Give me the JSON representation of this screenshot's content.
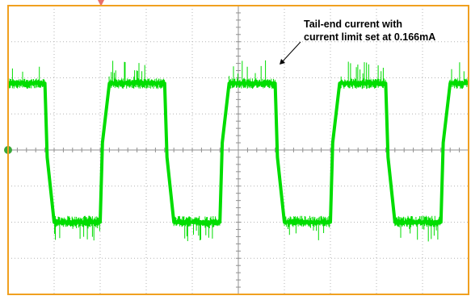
{
  "annotation": {
    "line1": "Tail-end current with",
    "line2": "current limit set at 0.166mA"
  },
  "colors": {
    "background": "#ffffff",
    "frame": "#f0a020",
    "grid": "#b4b4b4",
    "axis": "#909090",
    "trace": "#00dd00",
    "ground_marker": "#3aa83a",
    "trigger_marker": "#e8706a"
  },
  "chart_data": {
    "type": "line",
    "title": "",
    "xlabel": "",
    "ylabel": "",
    "grid": true,
    "divisions": {
      "x": 10,
      "y": 8
    },
    "xlim": [
      0,
      10
    ],
    "ylim": [
      -4,
      4
    ],
    "series": [
      {
        "x": [
          0,
          0.8,
          0.85,
          1.0,
          2.0,
          2.05,
          2.2,
          3.4,
          3.45,
          3.6,
          4.6,
          4.65,
          4.8,
          5.8,
          5.85,
          6.0,
          7.0,
          7.05,
          7.2,
          8.2,
          8.25,
          8.4,
          9.4,
          9.45,
          9.6,
          10
        ],
        "y": [
          1.85,
          1.85,
          -0.2,
          -2.0,
          -2.0,
          0.2,
          1.85,
          1.85,
          -0.2,
          -2.0,
          -2.0,
          0.2,
          1.85,
          1.85,
          -0.2,
          -2.0,
          -2.0,
          0.2,
          1.85,
          1.85,
          -0.2,
          -2.0,
          -2.0,
          0.2,
          1.85,
          1.85
        ]
      }
    ]
  }
}
